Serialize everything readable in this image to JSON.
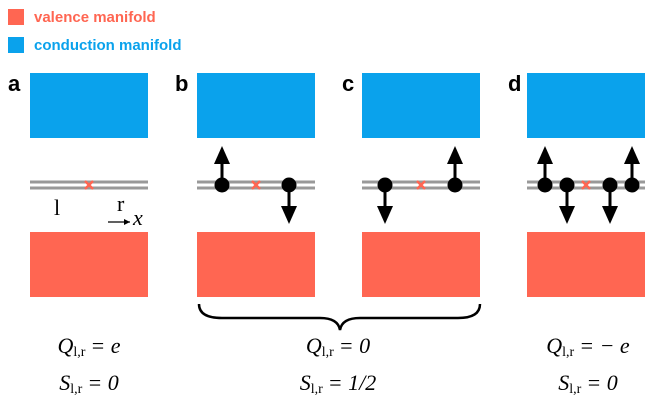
{
  "legend": [
    {
      "label": "valence manifold"
    },
    {
      "label": "conduction manifold"
    }
  ],
  "panels": [
    {
      "label": "a"
    },
    {
      "label": "b"
    },
    {
      "label": "c"
    },
    {
      "label": "d"
    }
  ],
  "site_labels": {
    "left": "l",
    "right": "r",
    "coordinate": "x"
  },
  "equations": [
    {
      "charge": {
        "symbol": "Q",
        "subscript": "l,r",
        "rhs": "= e"
      },
      "spin": {
        "symbol": "S",
        "subscript": "l,r",
        "rhs": "= 0"
      }
    },
    {
      "charge": {
        "symbol": "Q",
        "subscript": "l,r",
        "rhs": "= 0"
      },
      "spin": {
        "symbol": "S",
        "subscript": "l,r",
        "rhs": "= 1/2"
      }
    },
    {
      "charge": {
        "symbol": "Q",
        "subscript": "l,r",
        "rhs": "= − e"
      },
      "spin": {
        "symbol": "S",
        "subscript": "l,r",
        "rhs": "= 0"
      }
    }
  ]
}
